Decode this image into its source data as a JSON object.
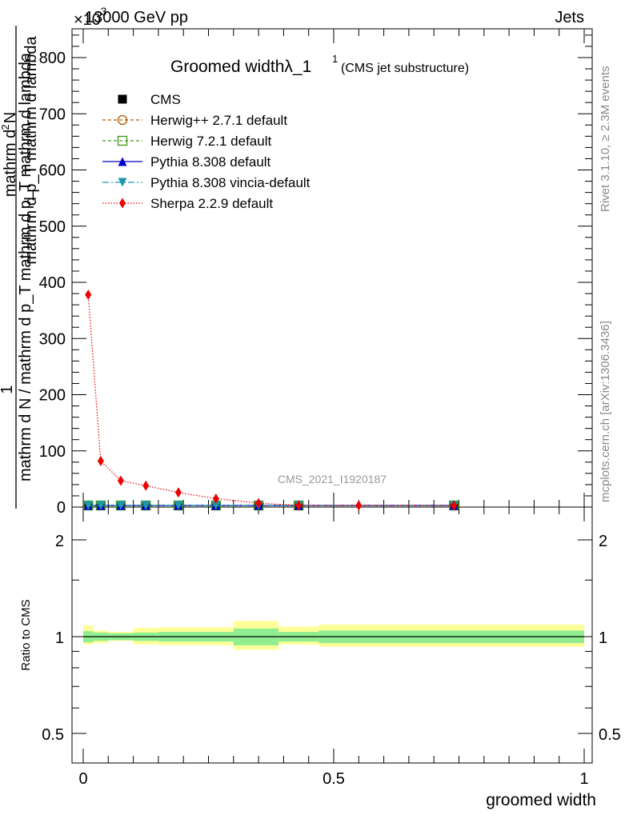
{
  "header": {
    "energy_label": "13000 GeV pp",
    "exponent_label": "×10",
    "exponent_sup": "-3",
    "process_label": "Jets"
  },
  "side_labels": {
    "rivet": "Rivet 3.1.10, ≥ 2.3M events",
    "mcplots": "mcplots.cern.ch [arXiv:1306.3436]"
  },
  "chart_data": [
    {
      "type": "line",
      "title": "Groomed widthλ_1",
      "title_sup": "1",
      "subtitle": "(CMS jet substructure)",
      "ylabel_top": "1",
      "ylabel_fraction_numer": "mathrm d",
      "ylabel_fraction_numer_sub": "2",
      "ylabel_fraction_numer_tail": "N",
      "ylabel_fraction_denom": "mathrm d p_T mathrm d lambda",
      "ylabel_main": "mathrm d N / mathrm d p_T mathrm d p_T mathrm d lambda",
      "xlabel": "groomed width",
      "analysis_id": "CMS_2021_I1920187",
      "xlim": [
        0,
        1
      ],
      "ylim": [
        0,
        860
      ],
      "y_ticks": [
        "0",
        "100",
        "200",
        "300",
        "400",
        "500",
        "600",
        "700",
        "800"
      ],
      "x_ticks": [
        "0",
        "0.5",
        "1"
      ],
      "legend_placement": "top-left",
      "series": [
        {
          "name": "CMS",
          "color": "#000000",
          "marker": "square-filled",
          "x": [
            0.01,
            0.035,
            0.075,
            0.125,
            0.19,
            0.265,
            0.35,
            0.43,
            0.74
          ],
          "y": [
            2,
            2,
            2,
            2,
            1.5,
            1,
            0.5,
            0.3,
            0.1
          ]
        },
        {
          "name": "Herwig++ 2.7.1 default",
          "color": "#b05a00",
          "marker": "circle-open",
          "dash": "4,3",
          "x": [
            0.01,
            0.035,
            0.075,
            0.125,
            0.19,
            0.265,
            0.35,
            0.43,
            0.74
          ],
          "y": [
            2,
            2,
            2,
            2,
            1.5,
            1,
            0.5,
            0.3,
            0.1
          ]
        },
        {
          "name": "Herwig 7.2.1 default",
          "color": "#3a9a1a",
          "marker": "square-open",
          "dash": "4,3",
          "x": [
            0.01,
            0.035,
            0.075,
            0.125,
            0.19,
            0.265,
            0.35,
            0.43,
            0.74
          ],
          "y": [
            2,
            2,
            2,
            2,
            1.5,
            1,
            0.5,
            0.3,
            0.1
          ]
        },
        {
          "name": "Pythia 8.308 default",
          "color": "#0000cc",
          "marker": "triangle-up",
          "dash": "",
          "x": [
            0.01,
            0.035,
            0.075,
            0.125,
            0.19,
            0.265,
            0.35,
            0.43,
            0.74
          ],
          "y": [
            2,
            2,
            2,
            2,
            1.5,
            1,
            0.5,
            0.3,
            0.1
          ]
        },
        {
          "name": "Pythia 8.308 vincia-default",
          "color": "#1a9ab0",
          "marker": "triangle-down",
          "dash": "8,3,2,3",
          "x": [
            0.01,
            0.035,
            0.075,
            0.125,
            0.19,
            0.265,
            0.35,
            0.43,
            0.74
          ],
          "y": [
            2,
            2,
            2,
            2,
            1.5,
            1,
            0.5,
            0.3,
            0.1
          ]
        },
        {
          "name": "Sherpa 2.2.9 default",
          "color": "#ee0000",
          "marker": "diamond",
          "dash": "1.5,2",
          "x": [
            0.01,
            0.035,
            0.075,
            0.125,
            0.19,
            0.265,
            0.35,
            0.43,
            0.55,
            0.74
          ],
          "y": [
            378,
            82,
            47,
            38,
            26,
            15,
            7,
            3,
            1,
            0.5
          ]
        }
      ]
    },
    {
      "type": "area",
      "ylabel": "Ratio to CMS",
      "xlabel": "groomed width",
      "xlim": [
        0,
        1
      ],
      "ylim": [
        0.4,
        2.4
      ],
      "y_scale": "log",
      "y_ticks": [
        "0.5",
        "1",
        "2"
      ],
      "x_ticks": [
        "0",
        "0.5",
        "1"
      ],
      "reference": 1,
      "bands": {
        "edges": [
          0.0,
          0.02,
          0.05,
          0.1,
          0.15,
          0.3,
          0.39,
          0.47,
          1.0
        ],
        "inner": {
          "color": "#90ee90",
          "lo": [
            0.96,
            0.97,
            0.975,
            0.97,
            0.965,
            0.94,
            0.965,
            0.955
          ],
          "hi": [
            1.04,
            1.03,
            1.025,
            1.03,
            1.035,
            1.06,
            1.035,
            1.045
          ]
        },
        "outer": {
          "color": "#ffff99",
          "lo": [
            0.945,
            0.955,
            0.97,
            0.945,
            0.94,
            0.91,
            0.945,
            0.93
          ],
          "hi": [
            1.085,
            1.045,
            1.035,
            1.065,
            1.07,
            1.12,
            1.075,
            1.09
          ]
        }
      }
    }
  ]
}
